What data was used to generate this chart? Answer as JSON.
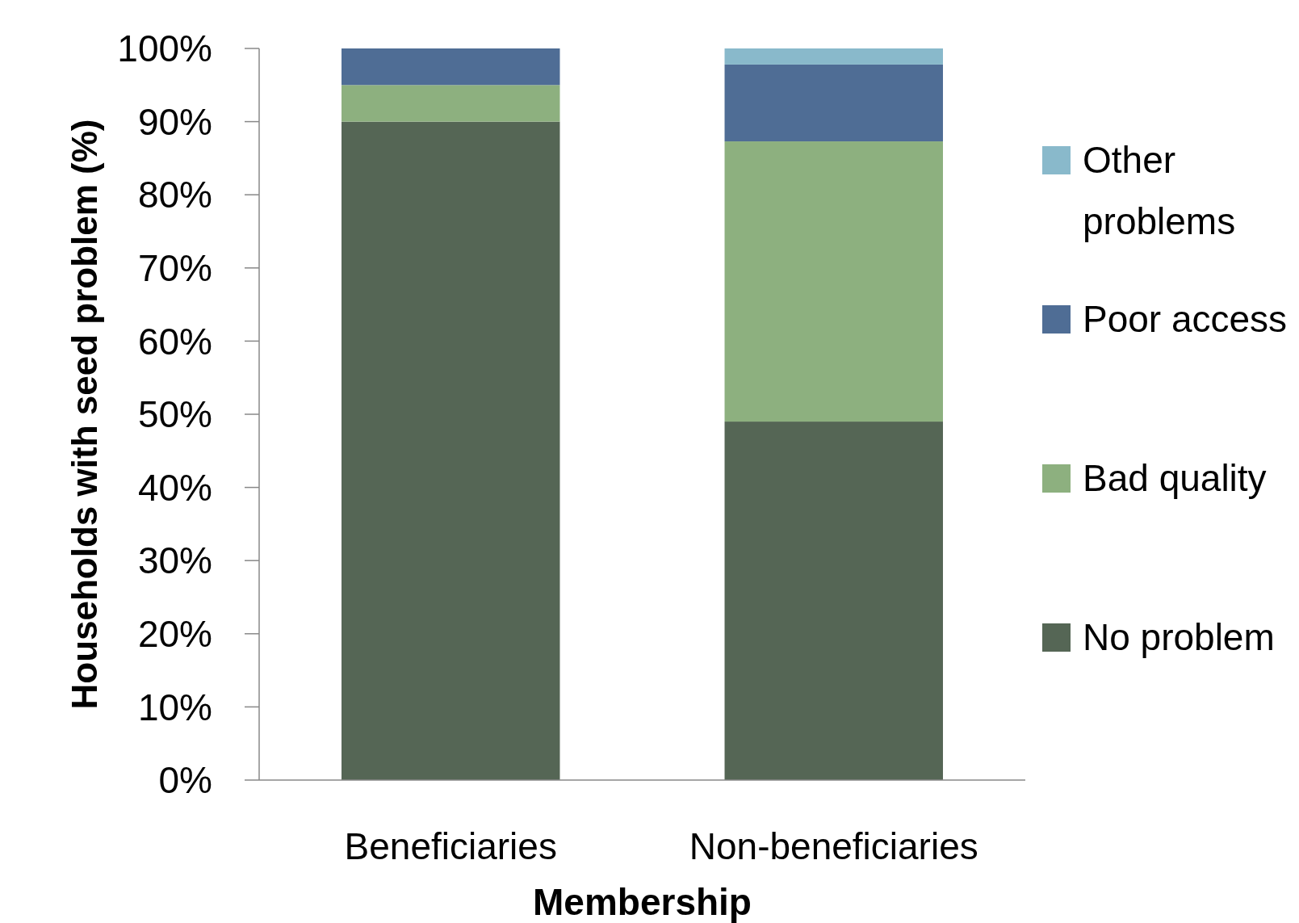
{
  "chart_data": {
    "type": "bar",
    "stacked": true,
    "xlabel": "Membership",
    "ylabel": "Households with seed problem (%)",
    "categories": [
      "Beneficiaries",
      "Non-beneficiaries"
    ],
    "series": [
      {
        "name": "No problem",
        "color": "#556655",
        "values": [
          90,
          49
        ]
      },
      {
        "name": "Bad quality",
        "color": "#8db07f",
        "values": [
          5,
          38.3
        ]
      },
      {
        "name": "Poor access",
        "color": "#4f6d95",
        "values": [
          5,
          10.5
        ]
      },
      {
        "name": "Other problems",
        "color": "#89b9cb",
        "values": [
          0,
          2.2
        ]
      }
    ],
    "ylim": [
      0,
      100
    ],
    "yticks": [
      {
        "value": 0,
        "label": "0%"
      },
      {
        "value": 10,
        "label": "10%"
      },
      {
        "value": 20,
        "label": "20%"
      },
      {
        "value": 30,
        "label": "30%"
      },
      {
        "value": 40,
        "label": "40%"
      },
      {
        "value": 50,
        "label": "50%"
      },
      {
        "value": 60,
        "label": "60%"
      },
      {
        "value": 70,
        "label": "70%"
      },
      {
        "value": 80,
        "label": "80%"
      },
      {
        "value": 90,
        "label": "90%"
      },
      {
        "value": 100,
        "label": "100%"
      }
    ],
    "grid": false,
    "legend": "right"
  }
}
